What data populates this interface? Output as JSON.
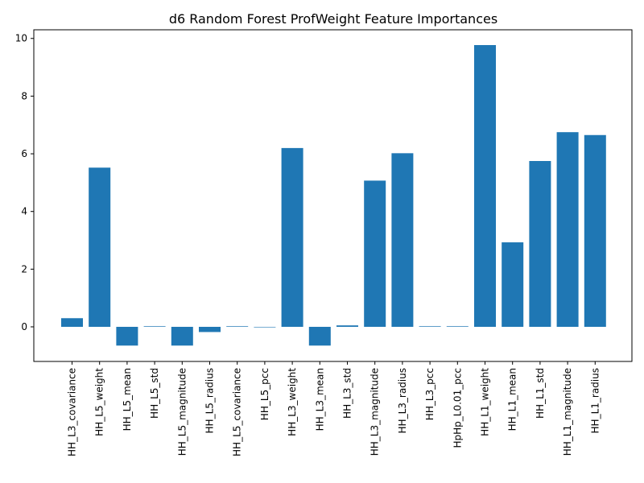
{
  "chart_data": {
    "type": "bar",
    "title": "d6 Random Forest ProfWeight Feature Importances",
    "xlabel": "",
    "ylabel": "",
    "ylim": [
      -1.2,
      10.3
    ],
    "yticks": [
      0,
      2,
      4,
      6,
      8,
      10
    ],
    "grid": false,
    "bar_color": "#1f77b4",
    "categories": [
      "HH_L3_covariance",
      "HH_L5_weight",
      "HH_L5_mean",
      "HH_L5_std",
      "HH_L5_magnitude",
      "HH_L5_radius",
      "HH_L5_covariance",
      "HH_L5_pcc",
      "HH_L3_weight",
      "HH_L3_mean",
      "HH_L3_std",
      "HH_L3_magnitude",
      "HH_L3_radius",
      "HH_L3_pcc",
      "HpHp_L0.01_pcc",
      "HH_L1_weight",
      "HH_L1_mean",
      "HH_L1_std",
      "HH_L1_magnitude",
      "HH_L1_radius"
    ],
    "values": [
      0.3,
      5.52,
      -0.65,
      0.02,
      -0.65,
      -0.18,
      0.02,
      0.0,
      6.2,
      -0.65,
      0.05,
      5.07,
      6.02,
      0.02,
      0.02,
      9.77,
      2.93,
      5.75,
      6.75,
      6.65
    ]
  }
}
